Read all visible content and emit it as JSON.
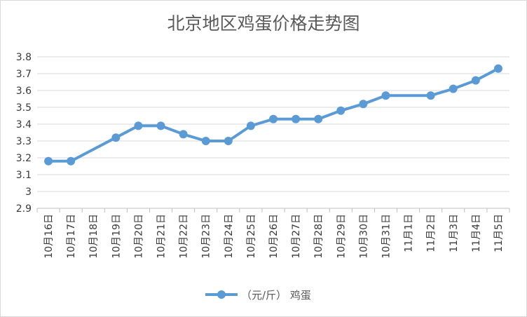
{
  "chart_data": {
    "type": "line",
    "title": "北京地区鸡蛋价格走势图",
    "xlabel": "",
    "ylabel": "",
    "ylim": [
      2.9,
      3.8
    ],
    "ytick_step": 0.1,
    "y_tick_labels": [
      "2.9",
      "3",
      "3.1",
      "3.2",
      "3.3",
      "3.4",
      "3.5",
      "3.6",
      "3.7",
      "3.8"
    ],
    "grid": true,
    "legend_position": "bottom",
    "categories": [
      "10月16日",
      "10月17日",
      "10月18日",
      "10月19日",
      "10月20日",
      "10月21日",
      "10月22日",
      "10月23日",
      "10月24日",
      "10月25日",
      "10月26日",
      "10月27日",
      "10月28日",
      "10月29日",
      "10月30日",
      "10月31日",
      "11月1日",
      "11月2日",
      "11月3日",
      "11月4日",
      "11月5日"
    ],
    "series": [
      {
        "name": "（元/斤） 鸡蛋",
        "color": "#5b9bd5",
        "values": [
          3.18,
          3.18,
          null,
          3.32,
          3.39,
          3.39,
          3.34,
          3.3,
          3.3,
          3.39,
          3.43,
          3.43,
          3.43,
          3.48,
          3.52,
          3.57,
          null,
          3.57,
          3.61,
          3.66,
          3.73
        ]
      }
    ]
  }
}
